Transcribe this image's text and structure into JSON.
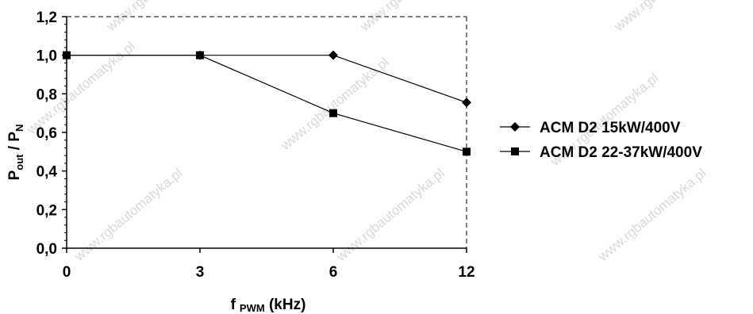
{
  "watermark": "www.rgbautomatyka.pl",
  "chart_data": {
    "type": "line",
    "x_tick_labels": [
      "0",
      "3",
      "6",
      "12"
    ],
    "y_tick_labels": [
      "0,0",
      "0,2",
      "0,4",
      "0,6",
      "0,8",
      "1,0",
      "1,2"
    ],
    "ylim": [
      0,
      1.2
    ],
    "grid": false,
    "xlabel": {
      "main": "f",
      "sub": "PWM",
      "tail": " (kHz)"
    },
    "ylabel": {
      "p1": "P",
      "s1": "out",
      "mid": " / P",
      "s2": "N"
    },
    "legend_position": "right",
    "series": [
      {
        "name": "ACM D2 15kW/400V",
        "marker": "diamond",
        "x": [
          "0",
          "3",
          "6",
          "12"
        ],
        "values": [
          1.0,
          1.0,
          1.0,
          0.755
        ]
      },
      {
        "name": "ACM D2 22-37kW/400V",
        "marker": "square",
        "x": [
          "0",
          "3",
          "6",
          "12"
        ],
        "values": [
          1.0,
          1.0,
          0.7,
          0.5
        ]
      }
    ]
  }
}
